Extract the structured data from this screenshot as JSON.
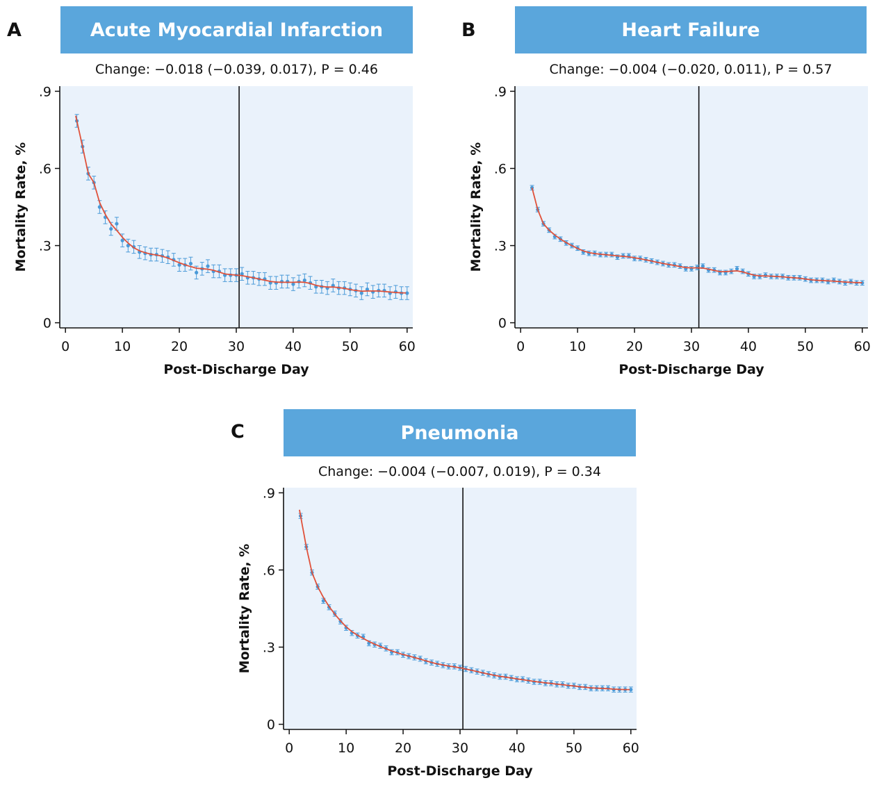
{
  "colors": {
    "banner": "#5aa6dc",
    "plot_bg": "#eaf2fb",
    "fit_line": "#e0513a",
    "points": "#4a9ad8",
    "vline": "#111111"
  },
  "panels": [
    {
      "letter": "A",
      "title": "Acute Myocardial Infarction",
      "subtitle": "Change: −0.018 (−0.039, 0.017), P = 0.46"
    },
    {
      "letter": "B",
      "title": "Heart Failure",
      "subtitle": "Change: −0.004 (−0.020, 0.011), P = 0.57"
    },
    {
      "letter": "C",
      "title": "Pneumonia",
      "subtitle": "Change: −0.004 (−0.007, 0.019), P = 0.34"
    }
  ],
  "chart_data": [
    {
      "type": "scatter",
      "title": "Acute Myocardial Infarction",
      "subtitle": "Change: −0.018 (−0.039, 0.017), P = 0.46",
      "xlabel": "Post-Discharge Day",
      "ylabel": "Mortality Rate, %",
      "xlim": [
        -1,
        61
      ],
      "ylim": [
        -0.02,
        0.92
      ],
      "xticks": [
        0,
        10,
        20,
        30,
        40,
        50,
        60
      ],
      "xtick_labels": [
        "0",
        "10",
        "20",
        "30",
        "40",
        "50",
        "60"
      ],
      "yticks": [
        0,
        0.3,
        0.6,
        0.9
      ],
      "ytick_labels": [
        "0",
        ".3",
        ".6",
        ".9"
      ],
      "vline_x": 30.5,
      "fit": {
        "a": 0.66,
        "b": 0.45,
        "c": 0.22,
        "d": 0.012,
        "start": 1.8
      },
      "err": 0.025,
      "x": [
        2,
        3,
        4,
        5,
        6,
        7,
        8,
        9,
        10,
        11,
        12,
        13,
        14,
        15,
        16,
        17,
        18,
        19,
        20,
        21,
        22,
        23,
        24,
        25,
        26,
        27,
        28,
        29,
        30,
        31,
        32,
        33,
        34,
        35,
        36,
        37,
        38,
        39,
        40,
        41,
        42,
        43,
        44,
        45,
        46,
        47,
        48,
        49,
        50,
        51,
        52,
        53,
        54,
        55,
        56,
        57,
        58,
        59,
        60
      ],
      "y": [
        0.785,
        0.685,
        0.58,
        0.545,
        0.45,
        0.41,
        0.365,
        0.385,
        0.32,
        0.3,
        0.295,
        0.275,
        0.27,
        0.265,
        0.265,
        0.26,
        0.255,
        0.245,
        0.225,
        0.225,
        0.23,
        0.195,
        0.21,
        0.22,
        0.2,
        0.2,
        0.185,
        0.185,
        0.185,
        0.19,
        0.175,
        0.175,
        0.17,
        0.17,
        0.155,
        0.155,
        0.16,
        0.16,
        0.15,
        0.16,
        0.165,
        0.155,
        0.14,
        0.14,
        0.135,
        0.145,
        0.135,
        0.135,
        0.13,
        0.125,
        0.115,
        0.13,
        0.12,
        0.125,
        0.125,
        0.115,
        0.12,
        0.115,
        0.115
      ]
    },
    {
      "type": "scatter",
      "title": "Heart Failure",
      "subtitle": "Change: −0.004 (−0.020, 0.011), P = 0.57",
      "xlabel": "Post-Discharge Day",
      "ylabel": "Mortality Rate, %",
      "xlim": [
        -1,
        61
      ],
      "ylim": [
        -0.02,
        0.92
      ],
      "xticks": [
        0,
        10,
        20,
        30,
        40,
        50,
        60
      ],
      "xtick_labels": [
        "0",
        "10",
        "20",
        "30",
        "40",
        "50",
        "60"
      ],
      "yticks": [
        0,
        0.3,
        0.6,
        0.9
      ],
      "ytick_labels": [
        "0",
        ".3",
        ".6",
        ".9"
      ],
      "vline_x": 31.3,
      "fit": {
        "a": 0.29,
        "b": 0.5,
        "c": 0.33,
        "d": 0.0125,
        "start": 2.0
      },
      "err": 0.009,
      "x": [
        2,
        3,
        4,
        5,
        6,
        7,
        8,
        9,
        10,
        11,
        12,
        13,
        14,
        15,
        16,
        17,
        18,
        19,
        20,
        21,
        22,
        23,
        24,
        25,
        26,
        27,
        28,
        29,
        30,
        31,
        32,
        33,
        34,
        35,
        36,
        37,
        38,
        39,
        40,
        41,
        42,
        43,
        44,
        45,
        46,
        47,
        48,
        49,
        50,
        51,
        52,
        53,
        54,
        55,
        56,
        57,
        58,
        59,
        60
      ],
      "y": [
        0.525,
        0.44,
        0.385,
        0.36,
        0.335,
        0.325,
        0.31,
        0.3,
        0.29,
        0.275,
        0.27,
        0.27,
        0.265,
        0.265,
        0.265,
        0.255,
        0.26,
        0.26,
        0.25,
        0.25,
        0.245,
        0.24,
        0.235,
        0.23,
        0.225,
        0.225,
        0.22,
        0.21,
        0.21,
        0.215,
        0.22,
        0.205,
        0.205,
        0.195,
        0.195,
        0.2,
        0.21,
        0.2,
        0.19,
        0.18,
        0.18,
        0.185,
        0.18,
        0.18,
        0.18,
        0.175,
        0.175,
        0.175,
        0.17,
        0.165,
        0.165,
        0.165,
        0.16,
        0.165,
        0.16,
        0.155,
        0.16,
        0.155,
        0.155
      ]
    },
    {
      "type": "scatter",
      "title": "Pneumonia",
      "subtitle": "Change: −0.004 (−0.007, 0.019), P = 0.34",
      "xlabel": "Post-Discharge Day",
      "ylabel": "Mortality Rate, %",
      "xlim": [
        -1,
        61
      ],
      "ylim": [
        -0.02,
        0.92
      ],
      "xticks": [
        0,
        10,
        20,
        30,
        40,
        50,
        60
      ],
      "xtick_labels": [
        "0",
        "10",
        "20",
        "30",
        "40",
        "50",
        "60"
      ],
      "yticks": [
        0,
        0.3,
        0.6,
        0.9
      ],
      "ytick_labels": [
        "0",
        ".3",
        ".6",
        ".9"
      ],
      "vline_x": 30.5,
      "fit": {
        "a": 0.56,
        "b": 0.45,
        "c": 0.28,
        "d": 0.0125,
        "start": 1.8
      },
      "err": 0.01,
      "x": [
        2,
        3,
        4,
        5,
        6,
        7,
        8,
        9,
        10,
        11,
        12,
        13,
        14,
        15,
        16,
        17,
        18,
        19,
        20,
        21,
        22,
        23,
        24,
        25,
        26,
        27,
        28,
        29,
        30,
        31,
        32,
        33,
        34,
        35,
        36,
        37,
        38,
        39,
        40,
        41,
        42,
        43,
        44,
        45,
        46,
        47,
        48,
        49,
        50,
        51,
        52,
        53,
        54,
        55,
        56,
        57,
        58,
        59,
        60
      ],
      "y": [
        0.81,
        0.69,
        0.59,
        0.535,
        0.48,
        0.455,
        0.43,
        0.4,
        0.375,
        0.355,
        0.345,
        0.34,
        0.315,
        0.31,
        0.305,
        0.295,
        0.28,
        0.28,
        0.27,
        0.265,
        0.26,
        0.255,
        0.245,
        0.24,
        0.235,
        0.23,
        0.225,
        0.225,
        0.22,
        0.215,
        0.21,
        0.205,
        0.2,
        0.195,
        0.19,
        0.185,
        0.185,
        0.18,
        0.175,
        0.175,
        0.17,
        0.165,
        0.165,
        0.16,
        0.16,
        0.155,
        0.155,
        0.15,
        0.15,
        0.145,
        0.145,
        0.14,
        0.14,
        0.14,
        0.14,
        0.135,
        0.135,
        0.135,
        0.135
      ]
    }
  ]
}
